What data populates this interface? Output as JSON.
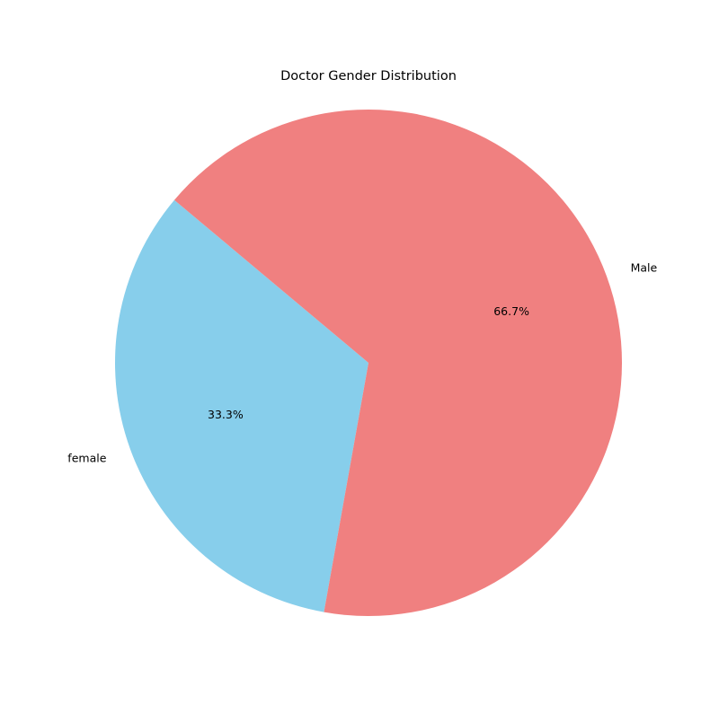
{
  "chart_data": {
    "type": "pie",
    "title": "Doctor Gender Distribution",
    "slices": [
      {
        "label": "female",
        "value": 33.3,
        "percent_label": "33.3%",
        "color": "#87ceeb"
      },
      {
        "label": "Male",
        "value": 66.7,
        "percent_label": "66.7%",
        "color": "#f08080"
      }
    ],
    "start_angle_deg": 140,
    "direction": "counterclockwise",
    "legend": "none"
  }
}
